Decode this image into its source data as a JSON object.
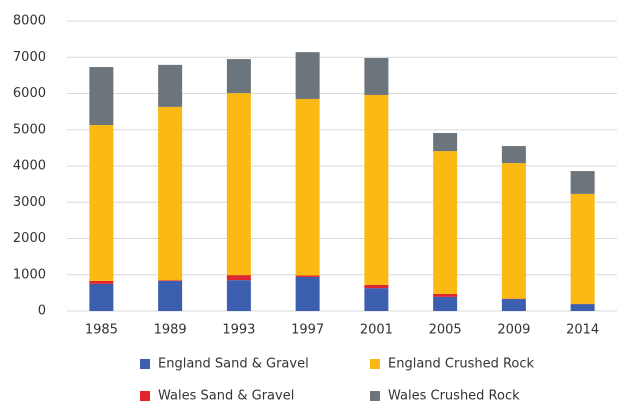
{
  "chart_data": {
    "type": "stacked-bar",
    "categories": [
      "1985",
      "1989",
      "1993",
      "1997",
      "2001",
      "2005",
      "2009",
      "2014"
    ],
    "series": [
      {
        "name": "England Sand & Gravel",
        "color": "#3b5fae",
        "values": [
          750,
          830,
          850,
          940,
          630,
          390,
          330,
          190
        ]
      },
      {
        "name": "Wales Sand & Gravel",
        "color": "#e0262c",
        "values": [
          80,
          20,
          140,
          40,
          90,
          80,
          10,
          10
        ]
      },
      {
        "name": "England Crushed Rock",
        "color": "#fdb913",
        "values": [
          4300,
          4780,
          5020,
          4870,
          5240,
          3940,
          3740,
          3030
        ]
      },
      {
        "name": "Wales Crushed Rock",
        "color": "#6d757c",
        "values": [
          1600,
          1160,
          940,
          1290,
          1020,
          500,
          470,
          630
        ]
      }
    ],
    "ylim": [
      0,
      8000
    ],
    "yticks": [
      0,
      1000,
      2000,
      3000,
      4000,
      5000,
      6000,
      7000,
      8000
    ],
    "grid": true
  }
}
